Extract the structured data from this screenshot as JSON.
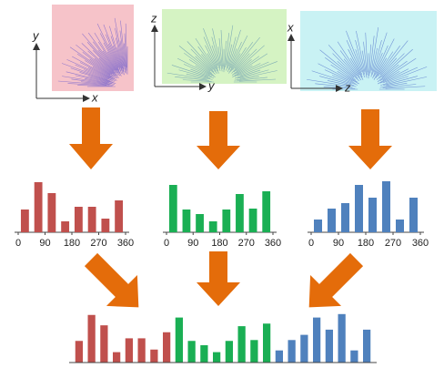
{
  "panels": [
    {
      "axes": {
        "vertical": "y",
        "horizontal": "x"
      },
      "histogram": {
        "type": "bar",
        "color": "#c0504d",
        "values": [
          25,
          55,
          43,
          12,
          28,
          28,
          15,
          35
        ],
        "xlim": [
          0,
          360
        ],
        "xticks": [
          0,
          90,
          180,
          270,
          360
        ]
      }
    },
    {
      "axes": {
        "vertical": "z",
        "horizontal": "y"
      },
      "histogram": {
        "type": "bar",
        "color": "#1aaf54",
        "values": [
          52,
          25,
          20,
          12,
          25,
          42,
          26,
          45
        ],
        "xlim": [
          0,
          360
        ],
        "xticks": [
          0,
          90,
          180,
          270,
          360
        ]
      }
    },
    {
      "axes": {
        "vertical": "x",
        "horizontal": "z"
      },
      "histogram": {
        "type": "bar",
        "color": "#4f81bd",
        "values": [
          14,
          26,
          32,
          52,
          38,
          56,
          14,
          38
        ],
        "xlim": [
          0,
          360
        ],
        "xticks": [
          0,
          90,
          180,
          270,
          360
        ]
      }
    }
  ]
}
